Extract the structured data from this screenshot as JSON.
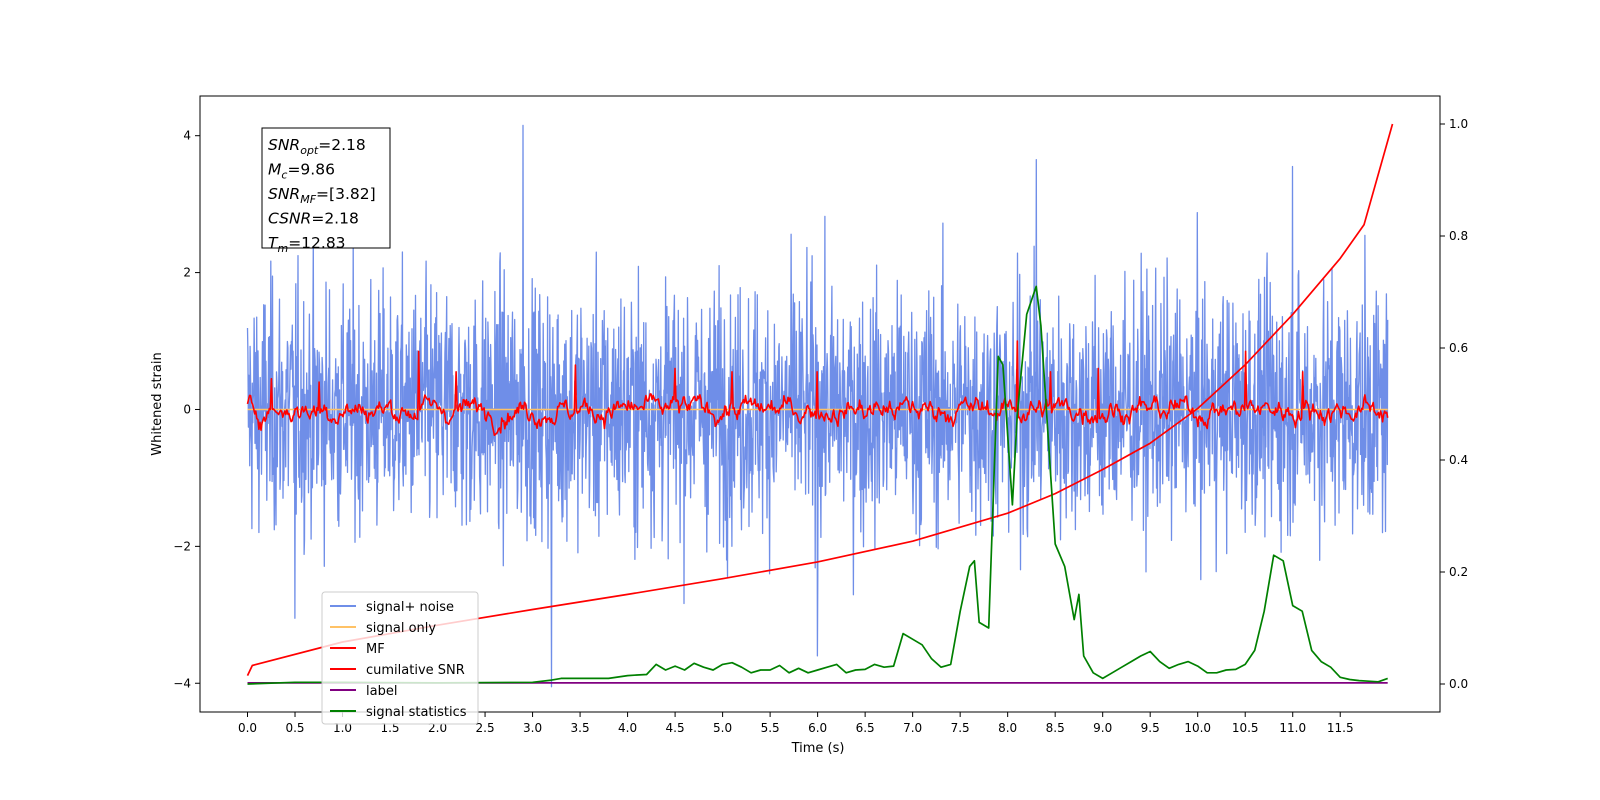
{
  "chart_data": {
    "type": "line",
    "title": "",
    "xlabel": "Time (s)",
    "ylabel": "Whitened strain",
    "xlim": [
      -0.5,
      12.55
    ],
    "ylim": [
      -4.42,
      4.58
    ],
    "y2lim": [
      -0.05,
      1.05
    ],
    "x_ticks": [
      "0.0",
      "0.5",
      "1.0",
      "1.5",
      "2.0",
      "2.5",
      "3.0",
      "3.5",
      "4.0",
      "4.5",
      "5.0",
      "5.5",
      "6.0",
      "6.5",
      "7.0",
      "7.5",
      "8.0",
      "8.5",
      "9.0",
      "9.5",
      "10.0",
      "10.5",
      "11.0",
      "11.5"
    ],
    "y_ticks": [
      "−4",
      "−2",
      "0",
      "2",
      "4"
    ],
    "y2_ticks": [
      "0.0",
      "0.2",
      "0.4",
      "0.6",
      "0.8",
      "1.0"
    ],
    "grid": false,
    "annotation": {
      "lines": [
        {
          "sym": "SNR",
          "sub": "opt",
          "text": "=2.18"
        },
        {
          "sym": "M",
          "sub": "c",
          "text": "=9.86"
        },
        {
          "sym": "SNR",
          "sub": "MF",
          "text": "=[3.82]"
        },
        {
          "sym": "CSNR",
          "sub": "",
          "text": "=2.18"
        },
        {
          "sym": "T",
          "sub": "m",
          "text": "=12.83"
        }
      ]
    },
    "legend": {
      "placement": "lower-left",
      "entries": [
        {
          "label": "signal+ noise",
          "color": "#6f8ee8"
        },
        {
          "label": "signal only",
          "color": "#ffc266"
        },
        {
          "label": "MF",
          "color": "#ff0000"
        },
        {
          "label": "cumilative SNR",
          "color": "#ff0000"
        },
        {
          "label": "label",
          "color": "#800080"
        },
        {
          "label": "signal statistics",
          "color": "#008000"
        }
      ]
    },
    "series": [
      {
        "name": "signal+ noise",
        "axis": "left",
        "color": "#6f8ee8",
        "x_range": [
          0.0,
          12.0
        ],
        "band_min": -2.3,
        "band_max": 2.3,
        "peaks": [
          [
            2.9,
            4.15
          ],
          [
            3.2,
            -4.05
          ],
          [
            8.3,
            3.65
          ],
          [
            11.0,
            3.55
          ],
          [
            0.5,
            -3.05
          ],
          [
            6.0,
            -3.6
          ]
        ]
      },
      {
        "name": "signal only",
        "axis": "left",
        "color": "#ffc266",
        "x_range": [
          0.0,
          12.0
        ],
        "values": [
          0.0,
          0.0
        ]
      },
      {
        "name": "MF",
        "axis": "left",
        "color": "#ff0000",
        "x_range": [
          0.0,
          12.0
        ],
        "band_min": -0.45,
        "band_max": 0.45,
        "peaks": [
          [
            0.25,
            0.45
          ],
          [
            0.75,
            0.4
          ],
          [
            1.8,
            0.85
          ],
          [
            2.2,
            0.55
          ],
          [
            3.45,
            0.65
          ],
          [
            4.5,
            0.6
          ],
          [
            5.1,
            0.55
          ],
          [
            6.0,
            0.55
          ],
          [
            8.1,
            1.0
          ],
          [
            8.45,
            0.55
          ],
          [
            8.95,
            0.6
          ],
          [
            10.5,
            0.85
          ],
          [
            11.1,
            0.55
          ]
        ]
      },
      {
        "name": "cumilative SNR",
        "axis": "right",
        "color": "#ff0000",
        "x": [
          0.0,
          0.05,
          1.0,
          2.0,
          3.0,
          4.0,
          5.0,
          6.0,
          7.0,
          8.0,
          8.5,
          9.0,
          9.5,
          10.0,
          10.5,
          11.0,
          11.5,
          11.75,
          12.05
        ],
        "values": [
          0.015,
          0.033,
          0.075,
          0.105,
          0.133,
          0.16,
          0.188,
          0.218,
          0.255,
          0.305,
          0.34,
          0.383,
          0.43,
          0.492,
          0.57,
          0.66,
          0.76,
          0.82,
          1.0
        ]
      },
      {
        "name": "label",
        "axis": "right",
        "color": "#800080",
        "x": [
          0.0,
          12.0
        ],
        "values": [
          0.002,
          0.002
        ]
      },
      {
        "name": "signal statistics",
        "axis": "right",
        "color": "#008000",
        "x": [
          0.0,
          0.5,
          1.0,
          2.0,
          3.0,
          3.2,
          3.3,
          3.5,
          3.8,
          4.0,
          4.1,
          4.2,
          4.3,
          4.4,
          4.5,
          4.6,
          4.7,
          4.8,
          4.9,
          5.0,
          5.1,
          5.2,
          5.3,
          5.4,
          5.5,
          5.6,
          5.7,
          5.8,
          5.9,
          6.0,
          6.1,
          6.2,
          6.3,
          6.4,
          6.5,
          6.6,
          6.7,
          6.8,
          6.9,
          7.0,
          7.1,
          7.2,
          7.3,
          7.4,
          7.5,
          7.6,
          7.65,
          7.7,
          7.8,
          7.9,
          7.95,
          8.05,
          8.1,
          8.2,
          8.3,
          8.35,
          8.45,
          8.5,
          8.6,
          8.7,
          8.75,
          8.8,
          8.9,
          9.0,
          9.1,
          9.2,
          9.3,
          9.4,
          9.5,
          9.6,
          9.7,
          9.8,
          9.9,
          10.0,
          10.1,
          10.2,
          10.3,
          10.4,
          10.5,
          10.6,
          10.7,
          10.8,
          10.9,
          11.0,
          11.1,
          11.2,
          11.3,
          11.4,
          11.5,
          11.6,
          11.7,
          11.8,
          11.9,
          12.0
        ],
        "values": [
          0.0,
          0.003,
          0.003,
          0.002,
          0.003,
          0.007,
          0.01,
          0.01,
          0.01,
          0.015,
          0.016,
          0.017,
          0.035,
          0.025,
          0.032,
          0.025,
          0.037,
          0.03,
          0.025,
          0.035,
          0.038,
          0.03,
          0.02,
          0.025,
          0.025,
          0.033,
          0.02,
          0.028,
          0.02,
          0.025,
          0.03,
          0.035,
          0.02,
          0.025,
          0.026,
          0.035,
          0.03,
          0.032,
          0.09,
          0.08,
          0.07,
          0.045,
          0.03,
          0.035,
          0.13,
          0.21,
          0.22,
          0.11,
          0.1,
          0.585,
          0.57,
          0.32,
          0.48,
          0.66,
          0.71,
          0.64,
          0.38,
          0.25,
          0.21,
          0.115,
          0.16,
          0.05,
          0.02,
          0.01,
          0.02,
          0.03,
          0.04,
          0.05,
          0.058,
          0.04,
          0.028,
          0.035,
          0.04,
          0.032,
          0.02,
          0.02,
          0.025,
          0.026,
          0.035,
          0.06,
          0.13,
          0.23,
          0.22,
          0.14,
          0.13,
          0.06,
          0.04,
          0.03,
          0.012,
          0.008,
          0.006,
          0.005,
          0.004,
          0.01
        ]
      }
    ]
  }
}
